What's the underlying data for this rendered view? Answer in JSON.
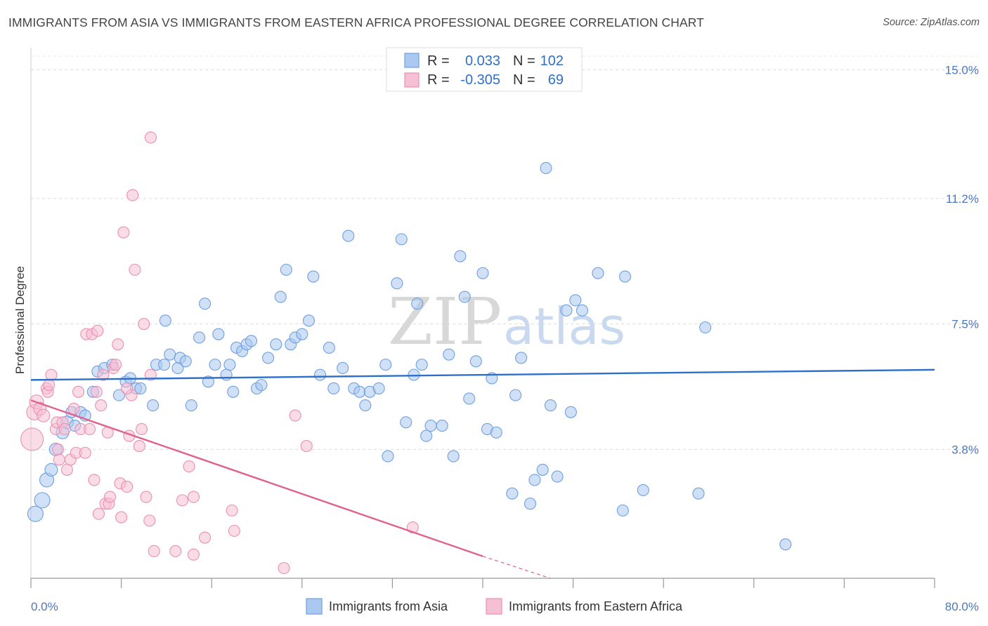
{
  "title": "IMMIGRANTS FROM ASIA VS IMMIGRANTS FROM EASTERN AFRICA PROFESSIONAL DEGREE CORRELATION CHART",
  "source": "Source: ZipAtlas.com",
  "chart_data": {
    "type": "scatter",
    "title": "IMMIGRANTS FROM ASIA VS IMMIGRANTS FROM EASTERN AFRICA PROFESSIONAL DEGREE CORRELATION CHART",
    "xlabel": "",
    "ylabel": "Professional Degree",
    "xlim": [
      0,
      80
    ],
    "ylim": [
      0,
      15.4
    ],
    "x_tick_labels": [
      "0.0%",
      "80.0%"
    ],
    "y_ticks": [
      3.8,
      7.5,
      11.2,
      15.0
    ],
    "y_tick_labels": [
      "3.8%",
      "7.5%",
      "11.2%",
      "15.0%"
    ],
    "watermark": [
      "ZIP",
      "atlas"
    ],
    "legend": {
      "r_label": "R =",
      "n_label": "N =",
      "entries": [
        {
          "r": "0.033",
          "n": "102"
        },
        {
          "r": "-0.305",
          "n": "69"
        }
      ]
    },
    "series": [
      {
        "name": "Immigrants from Asia",
        "color": "#6f9fe0",
        "fill": "#aac8f0",
        "line_color": "#2e6fcc",
        "trend": {
          "x0": 0,
          "y0": 5.85,
          "x1": 80,
          "y1": 6.15
        },
        "points": [
          [
            0.4,
            1.9,
            11
          ],
          [
            1.0,
            2.3,
            11
          ],
          [
            1.4,
            2.9,
            10
          ],
          [
            1.8,
            3.2,
            9
          ],
          [
            2.2,
            3.8,
            9
          ],
          [
            2.8,
            4.3,
            9
          ],
          [
            3.2,
            4.6,
            9
          ],
          [
            3.6,
            4.9,
            8
          ],
          [
            3.9,
            4.5,
            8
          ],
          [
            4.4,
            4.9,
            8
          ],
          [
            4.8,
            4.8,
            8
          ],
          [
            5.5,
            5.5,
            8
          ],
          [
            5.9,
            6.1,
            8
          ],
          [
            6.5,
            6.2,
            8
          ],
          [
            7.2,
            6.3,
            8
          ],
          [
            7.8,
            5.4,
            8
          ],
          [
            8.4,
            5.8,
            8
          ],
          [
            8.8,
            5.9,
            8
          ],
          [
            9.3,
            5.6,
            8
          ],
          [
            9.7,
            5.6,
            8
          ],
          [
            10.8,
            5.1,
            8
          ],
          [
            11.1,
            6.3,
            8
          ],
          [
            11.8,
            6.3,
            8
          ],
          [
            11.9,
            7.6,
            8
          ],
          [
            12.3,
            6.6,
            8
          ],
          [
            13.0,
            6.2,
            8
          ],
          [
            13.2,
            6.5,
            8
          ],
          [
            13.7,
            6.4,
            8
          ],
          [
            14.2,
            5.1,
            8
          ],
          [
            14.9,
            7.1,
            8
          ],
          [
            15.4,
            8.1,
            8
          ],
          [
            15.7,
            5.8,
            8
          ],
          [
            16.3,
            6.3,
            8
          ],
          [
            16.6,
            7.2,
            8
          ],
          [
            17.3,
            6.0,
            8
          ],
          [
            17.6,
            6.3,
            8
          ],
          [
            17.9,
            5.5,
            8
          ],
          [
            18.2,
            6.8,
            8
          ],
          [
            18.7,
            6.7,
            8
          ],
          [
            19.1,
            6.9,
            8
          ],
          [
            19.5,
            7.0,
            8
          ],
          [
            20.0,
            5.6,
            8
          ],
          [
            20.4,
            5.7,
            8
          ],
          [
            21.0,
            6.5,
            8
          ],
          [
            21.7,
            6.9,
            8
          ],
          [
            22.1,
            8.3,
            8
          ],
          [
            22.6,
            9.1,
            8
          ],
          [
            23.0,
            6.9,
            8
          ],
          [
            23.4,
            7.1,
            8
          ],
          [
            24.0,
            7.2,
            8
          ],
          [
            24.6,
            7.6,
            8
          ],
          [
            25.0,
            8.9,
            8
          ],
          [
            25.6,
            6.0,
            8
          ],
          [
            26.4,
            6.8,
            8
          ],
          [
            26.8,
            5.6,
            8
          ],
          [
            27.6,
            6.2,
            8
          ],
          [
            28.1,
            10.1,
            8
          ],
          [
            28.6,
            5.6,
            8
          ],
          [
            29.1,
            5.5,
            8
          ],
          [
            29.6,
            5.1,
            8
          ],
          [
            30.0,
            5.5,
            8
          ],
          [
            30.8,
            5.6,
            8
          ],
          [
            31.4,
            6.3,
            8
          ],
          [
            31.6,
            3.6,
            8
          ],
          [
            32.4,
            8.7,
            8
          ],
          [
            32.8,
            10.0,
            8
          ],
          [
            33.2,
            4.6,
            8
          ],
          [
            33.9,
            6.0,
            8
          ],
          [
            34.2,
            8.1,
            8
          ],
          [
            34.6,
            6.3,
            8
          ],
          [
            35.0,
            4.2,
            8
          ],
          [
            35.4,
            4.5,
            8
          ],
          [
            36.4,
            4.5,
            8
          ],
          [
            37.0,
            6.6,
            8
          ],
          [
            37.4,
            3.6,
            8
          ],
          [
            38.0,
            9.5,
            8
          ],
          [
            38.4,
            8.3,
            8
          ],
          [
            38.8,
            5.3,
            8
          ],
          [
            39.4,
            6.4,
            8
          ],
          [
            40.0,
            9.0,
            8
          ],
          [
            40.4,
            4.4,
            8
          ],
          [
            40.8,
            5.9,
            8
          ],
          [
            41.2,
            4.3,
            8
          ],
          [
            42.6,
            2.5,
            8
          ],
          [
            42.9,
            5.4,
            8
          ],
          [
            43.4,
            6.5,
            8
          ],
          [
            44.2,
            2.2,
            8
          ],
          [
            44.6,
            2.9,
            8
          ],
          [
            45.3,
            3.2,
            8
          ],
          [
            45.6,
            12.1,
            8
          ],
          [
            46.0,
            5.1,
            8
          ],
          [
            46.6,
            3.0,
            8
          ],
          [
            47.4,
            7.9,
            8
          ],
          [
            47.8,
            4.9,
            8
          ],
          [
            48.2,
            8.2,
            8
          ],
          [
            48.8,
            7.9,
            8
          ],
          [
            50.2,
            9.0,
            8
          ],
          [
            52.4,
            2.0,
            8
          ],
          [
            52.6,
            8.9,
            8
          ],
          [
            54.2,
            2.6,
            8
          ],
          [
            59.1,
            2.5,
            8
          ],
          [
            59.7,
            7.4,
            8
          ],
          [
            66.8,
            1.0,
            8
          ]
        ]
      },
      {
        "name": "Immigrants from Eastern Africa",
        "color": "#eb90b0",
        "fill": "#f6c0d4",
        "line_color": "#e0628f",
        "trend": {
          "x0": 0,
          "y0": 5.25,
          "x1": 40,
          "y1": 0.65
        },
        "trend_dash": {
          "x0": 40,
          "y0": 0.65,
          "x1": 46,
          "y1": 0.0
        },
        "points": [
          [
            0.1,
            4.1,
            16
          ],
          [
            0.3,
            4.9,
            11
          ],
          [
            0.5,
            5.2,
            10
          ],
          [
            0.8,
            5.0,
            9
          ],
          [
            1.1,
            4.8,
            9
          ],
          [
            1.4,
            5.6,
            8
          ],
          [
            1.5,
            5.5,
            8
          ],
          [
            1.6,
            5.7,
            8
          ],
          [
            1.8,
            6.0,
            8
          ],
          [
            2.2,
            4.4,
            8
          ],
          [
            2.3,
            4.6,
            8
          ],
          [
            2.4,
            3.8,
            8
          ],
          [
            2.5,
            3.5,
            8
          ],
          [
            2.8,
            4.6,
            8
          ],
          [
            3.0,
            4.4,
            8
          ],
          [
            3.2,
            3.2,
            8
          ],
          [
            3.5,
            3.5,
            8
          ],
          [
            3.8,
            5.0,
            8
          ],
          [
            4.0,
            3.7,
            8
          ],
          [
            4.2,
            5.5,
            8
          ],
          [
            4.4,
            4.4,
            8
          ],
          [
            4.8,
            3.7,
            8
          ],
          [
            4.9,
            7.2,
            8
          ],
          [
            5.2,
            4.4,
            8
          ],
          [
            5.4,
            7.2,
            8
          ],
          [
            5.6,
            2.9,
            8
          ],
          [
            5.8,
            5.5,
            8
          ],
          [
            5.9,
            7.3,
            8
          ],
          [
            6.0,
            1.9,
            8
          ],
          [
            6.2,
            5.1,
            8
          ],
          [
            6.4,
            6.0,
            8
          ],
          [
            6.6,
            2.2,
            8
          ],
          [
            6.8,
            4.3,
            8
          ],
          [
            6.9,
            2.2,
            8
          ],
          [
            7.0,
            2.4,
            8
          ],
          [
            7.3,
            6.2,
            8
          ],
          [
            7.5,
            6.3,
            8
          ],
          [
            7.7,
            6.9,
            8
          ],
          [
            7.9,
            2.8,
            8
          ],
          [
            8.0,
            1.8,
            8
          ],
          [
            8.2,
            10.2,
            8
          ],
          [
            8.5,
            2.7,
            8
          ],
          [
            8.7,
            4.2,
            8
          ],
          [
            8.9,
            5.4,
            8
          ],
          [
            8.5,
            5.6,
            8
          ],
          [
            9.0,
            11.3,
            8
          ],
          [
            9.2,
            9.1,
            8
          ],
          [
            9.6,
            3.9,
            8
          ],
          [
            9.8,
            4.4,
            8
          ],
          [
            10.0,
            7.5,
            8
          ],
          [
            10.2,
            2.4,
            8
          ],
          [
            10.5,
            1.7,
            8
          ],
          [
            10.6,
            6.0,
            8
          ],
          [
            10.9,
            0.8,
            8
          ],
          [
            10.6,
            13.0,
            8
          ],
          [
            12.8,
            0.8,
            8
          ],
          [
            13.4,
            2.3,
            8
          ],
          [
            14.0,
            3.3,
            8
          ],
          [
            14.4,
            0.7,
            8
          ],
          [
            14.4,
            2.4,
            8
          ],
          [
            15.4,
            1.2,
            8
          ],
          [
            17.8,
            2.0,
            8
          ],
          [
            18.0,
            1.4,
            8
          ],
          [
            22.4,
            0.3,
            8
          ],
          [
            23.4,
            4.8,
            8
          ],
          [
            24.4,
            3.9,
            8
          ],
          [
            33.8,
            1.5,
            8
          ]
        ]
      }
    ]
  }
}
